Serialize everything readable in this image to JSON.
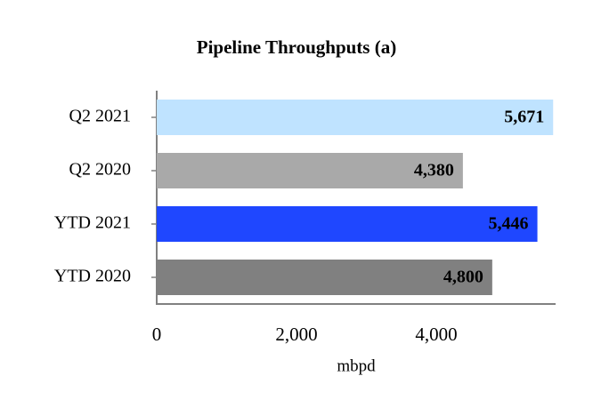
{
  "chart_data": {
    "type": "hbar",
    "title": "Pipeline Throughputs (a)",
    "xlabel": "mbpd",
    "categories": [
      "Q2 2021",
      "Q2 2020",
      "YTD 2021",
      "YTD 2020"
    ],
    "values": [
      5671,
      4380,
      5446,
      4800
    ],
    "value_labels": [
      "5,671",
      "4,380",
      "5,446",
      "4,800"
    ],
    "colors": [
      "#bfe3ff",
      "#a9a9a9",
      "#1f47ff",
      "#808080"
    ],
    "label_colors": [
      "#000000",
      "#000000",
      "#ffffff",
      "#ffffff"
    ],
    "xlim": [
      0,
      5700
    ],
    "xticks": [
      0,
      {
        "value": 2000,
        "label": "2,000"
      },
      {
        "value": 4000,
        "label": "4,000"
      }
    ]
  }
}
